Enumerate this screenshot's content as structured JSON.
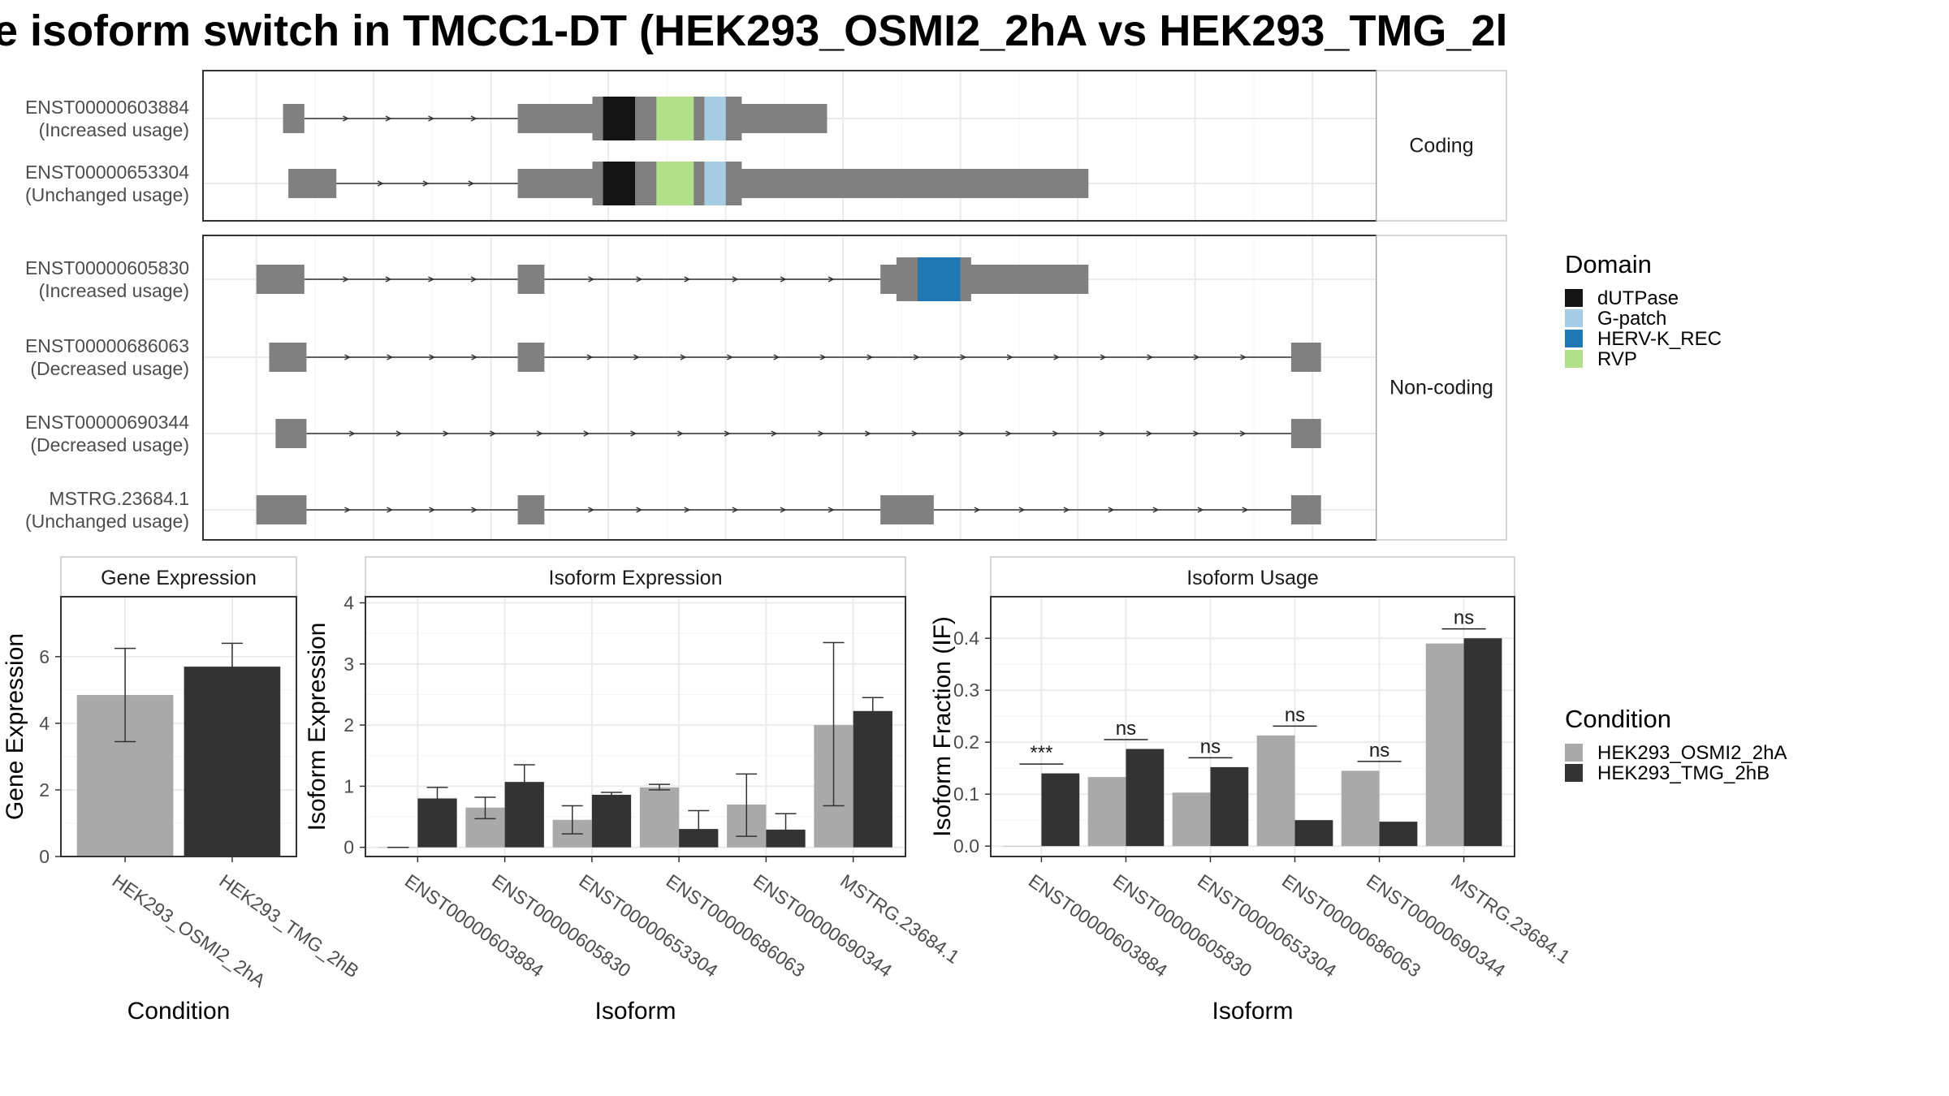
{
  "title": "e isoform switch in TMCC1-DT (HEK293_OSMI2_2hA vs HEK293_TMG_2l",
  "colors": {
    "exon": "#808080",
    "intron": "#333333",
    "panel_border": "#333333",
    "grid": "#ebebeb",
    "strip_fill": "#ffffff",
    "condition_a": "#a9a9a9",
    "condition_b": "#333333"
  },
  "domain_legend": {
    "title": "Domain",
    "items": [
      {
        "label": "dUTPase",
        "color": "#141414"
      },
      {
        "label": "G-patch",
        "color": "#a6cde3"
      },
      {
        "label": "HERV-K_REC",
        "color": "#1f78b4"
      },
      {
        "label": "RVP",
        "color": "#b2df8a"
      }
    ]
  },
  "condition_legend": {
    "title": "Condition",
    "items": [
      {
        "label": "HEK293_OSMI2_2hA",
        "color": "#a9a9a9"
      },
      {
        "label": "HEK293_TMG_2hB",
        "color": "#333333"
      }
    ]
  },
  "chart_data": [
    {
      "type": "gene-structure",
      "facet": "Coding",
      "x_range": [
        0,
        1100
      ],
      "transcripts": [
        {
          "id": "ENST00000603884",
          "usage": "(Increased usage)",
          "exons": [
            [
              75,
              95
            ],
            [
              295,
              585
            ]
          ],
          "cds": [
            [
              365,
              505
            ]
          ],
          "domains": [
            {
              "name": "dUTPase",
              "range": [
                375,
                405
              ]
            },
            {
              "name": "RVP",
              "range": [
                425,
                460
              ]
            },
            {
              "name": "G-patch",
              "range": [
                470,
                490
              ]
            }
          ]
        },
        {
          "id": "ENST00000653304",
          "usage": "(Unchanged usage)",
          "exons": [
            [
              80,
              125
            ],
            [
              295,
              830
            ]
          ],
          "cds": [
            [
              365,
              505
            ]
          ],
          "domains": [
            {
              "name": "dUTPase",
              "range": [
                375,
                405
              ]
            },
            {
              "name": "RVP",
              "range": [
                425,
                460
              ]
            },
            {
              "name": "G-patch",
              "range": [
                470,
                490
              ]
            }
          ]
        }
      ]
    },
    {
      "type": "gene-structure",
      "facet": "Non-coding",
      "x_range": [
        0,
        1100
      ],
      "transcripts": [
        {
          "id": "ENST00000605830",
          "usage": "(Increased usage)",
          "exons": [
            [
              50,
              95
            ],
            [
              295,
              320
            ],
            [
              635,
              830
            ]
          ],
          "cds": [
            [
              650,
              720
            ]
          ],
          "domains": [
            {
              "name": "HERV-K_REC",
              "range": [
                670,
                710
              ]
            }
          ]
        },
        {
          "id": "ENST00000686063",
          "usage": "(Decreased usage)",
          "exons": [
            [
              62,
              97
            ],
            [
              295,
              320
            ],
            [
              1020,
              1048
            ]
          ],
          "cds": [],
          "domains": []
        },
        {
          "id": "ENST00000690344",
          "usage": "(Decreased usage)",
          "exons": [
            [
              68,
              97
            ],
            [
              1020,
              1048
            ]
          ],
          "cds": [],
          "domains": []
        },
        {
          "id": "MSTRG.23684.1",
          "usage": "(Unchanged usage)",
          "exons": [
            [
              50,
              97
            ],
            [
              295,
              320
            ],
            [
              635,
              685
            ],
            [
              1020,
              1048
            ]
          ],
          "cds": [],
          "domains": []
        }
      ]
    },
    {
      "type": "bar",
      "title": "Gene Expression",
      "xlabel": "Condition",
      "ylabel": "Gene Expression",
      "categories": [
        "HEK293_OSMI2_2hA",
        "HEK293_TMG_2hB"
      ],
      "values": [
        4.85,
        5.7
      ],
      "errors": [
        [
          3.45,
          6.25
        ],
        [
          5.0,
          6.4
        ]
      ],
      "ylim": [
        0,
        7.8
      ],
      "yticks": [
        0,
        2,
        4,
        6
      ]
    },
    {
      "type": "bar",
      "title": "Isoform Expression",
      "xlabel": "Isoform",
      "ylabel": "Isoform Expression",
      "categories": [
        "ENST00000603884",
        "ENST00000605830",
        "ENST00000653304",
        "ENST00000686063",
        "ENST00000690344",
        "MSTRG.23684.1"
      ],
      "series": [
        {
          "name": "HEK293_OSMI2_2hA",
          "values": [
            0,
            0.65,
            0.45,
            0.98,
            0.7,
            2.0
          ],
          "errors": [
            [
              0,
              0
            ],
            [
              0.47,
              0.82
            ],
            [
              0.22,
              0.68
            ],
            [
              0.94,
              1.03
            ],
            [
              0.18,
              1.2
            ],
            [
              0.68,
              3.35
            ]
          ]
        },
        {
          "name": "HEK293_TMG_2hB",
          "values": [
            0.8,
            1.07,
            0.86,
            0.3,
            0.29,
            2.23
          ],
          "errors": [
            [
              0.6,
              0.98
            ],
            [
              0.76,
              1.35
            ],
            [
              0.82,
              0.9
            ],
            [
              0.02,
              0.6
            ],
            [
              0.02,
              0.55
            ],
            [
              2.0,
              2.45
            ]
          ]
        }
      ],
      "ylim": [
        -0.15,
        4.1
      ],
      "yticks": [
        0,
        1,
        2,
        3,
        4
      ]
    },
    {
      "type": "bar",
      "title": "Isoform Usage",
      "xlabel": "Isoform",
      "ylabel": "Isoform Fraction (IF)",
      "categories": [
        "ENST00000603884",
        "ENST00000605830",
        "ENST00000653304",
        "ENST00000686063",
        "ENST00000690344",
        "MSTRG.23684.1"
      ],
      "series": [
        {
          "name": "HEK293_OSMI2_2hA",
          "values": [
            0,
            0.133,
            0.103,
            0.213,
            0.145,
            0.39
          ]
        },
        {
          "name": "HEK293_TMG_2hB",
          "values": [
            0.14,
            0.187,
            0.152,
            0.05,
            0.047,
            0.4
          ]
        }
      ],
      "significance": [
        "***",
        "ns",
        "ns",
        "ns",
        "ns",
        "ns"
      ],
      "ylim": [
        -0.02,
        0.48
      ],
      "yticks": [
        0.0,
        0.1,
        0.2,
        0.3,
        0.4
      ],
      "ytick_labels": [
        "0.0",
        "0.1",
        "0.2",
        "0.3",
        "0.4"
      ]
    }
  ]
}
